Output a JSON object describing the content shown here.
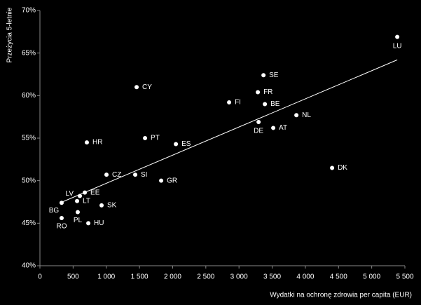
{
  "chart_data": {
    "type": "scatter",
    "x_label": "Wydatki na ochronę zdrowia per capita (EUR)",
    "y_label": "Przeżycia 5-letnie",
    "labels": [
      "LU",
      "SE",
      "FR",
      "BE",
      "FI",
      "CY",
      "NL",
      "DE",
      "AT",
      "PT",
      "ES",
      "HR",
      "DK",
      "CZ",
      "SI",
      "GR",
      "EE",
      "LV",
      "LT",
      "BG",
      "SK",
      "PL",
      "RO",
      "HU"
    ],
    "x": [
      5385,
      3369,
      3284,
      3390,
      2851,
      1457,
      3865,
      3295,
      3516,
      1584,
      2049,
      707,
      4403,
      1003,
      1436,
      1827,
      676,
      602,
      560,
      327,
      929,
      570,
      327,
      729
    ],
    "y": [
      66.9,
      62.4,
      60.4,
      59.0,
      59.2,
      61.0,
      57.7,
      56.9,
      56.2,
      55.0,
      54.3,
      54.5,
      51.5,
      50.7,
      50.7,
      50.0,
      48.6,
      48.2,
      47.6,
      47.4,
      47.1,
      46.3,
      45.6,
      45.0
    ],
    "color": "#ffffff",
    "trendline": {
      "x": [
        338,
        5385
      ],
      "y": [
        47.5,
        64.2
      ],
      "color": "#ffffff"
    },
    "xlim": [
      0,
      5500
    ],
    "xticks": [
      0,
      500,
      {
        "value": 1000,
        "label": "1 000"
      },
      {
        "value": 1500,
        "label": "1 500"
      },
      {
        "value": 2000,
        "label": "2 000"
      },
      {
        "value": 2500,
        "label": "2 500"
      },
      {
        "value": 3000,
        "label": "3 000"
      },
      {
        "value": 3500,
        "label": "3 500"
      },
      {
        "value": 4000,
        "label": "4 000"
      },
      {
        "value": 4500,
        "label": "4 500"
      },
      {
        "value": 5000,
        "label": "5 000"
      },
      {
        "value": 5500,
        "label": "5 500"
      }
    ],
    "ylim": [
      40,
      70
    ],
    "yticks": [
      {
        "value": 40,
        "label": "40%"
      },
      {
        "value": 45,
        "label": "45%"
      },
      {
        "value": 50,
        "label": "50%"
      },
      {
        "value": 55,
        "label": "55%"
      },
      {
        "value": 60,
        "label": "60%"
      },
      {
        "value": 65,
        "label": "65%"
      },
      {
        "value": 70,
        "label": "70%"
      }
    ],
    "grid": false
  }
}
